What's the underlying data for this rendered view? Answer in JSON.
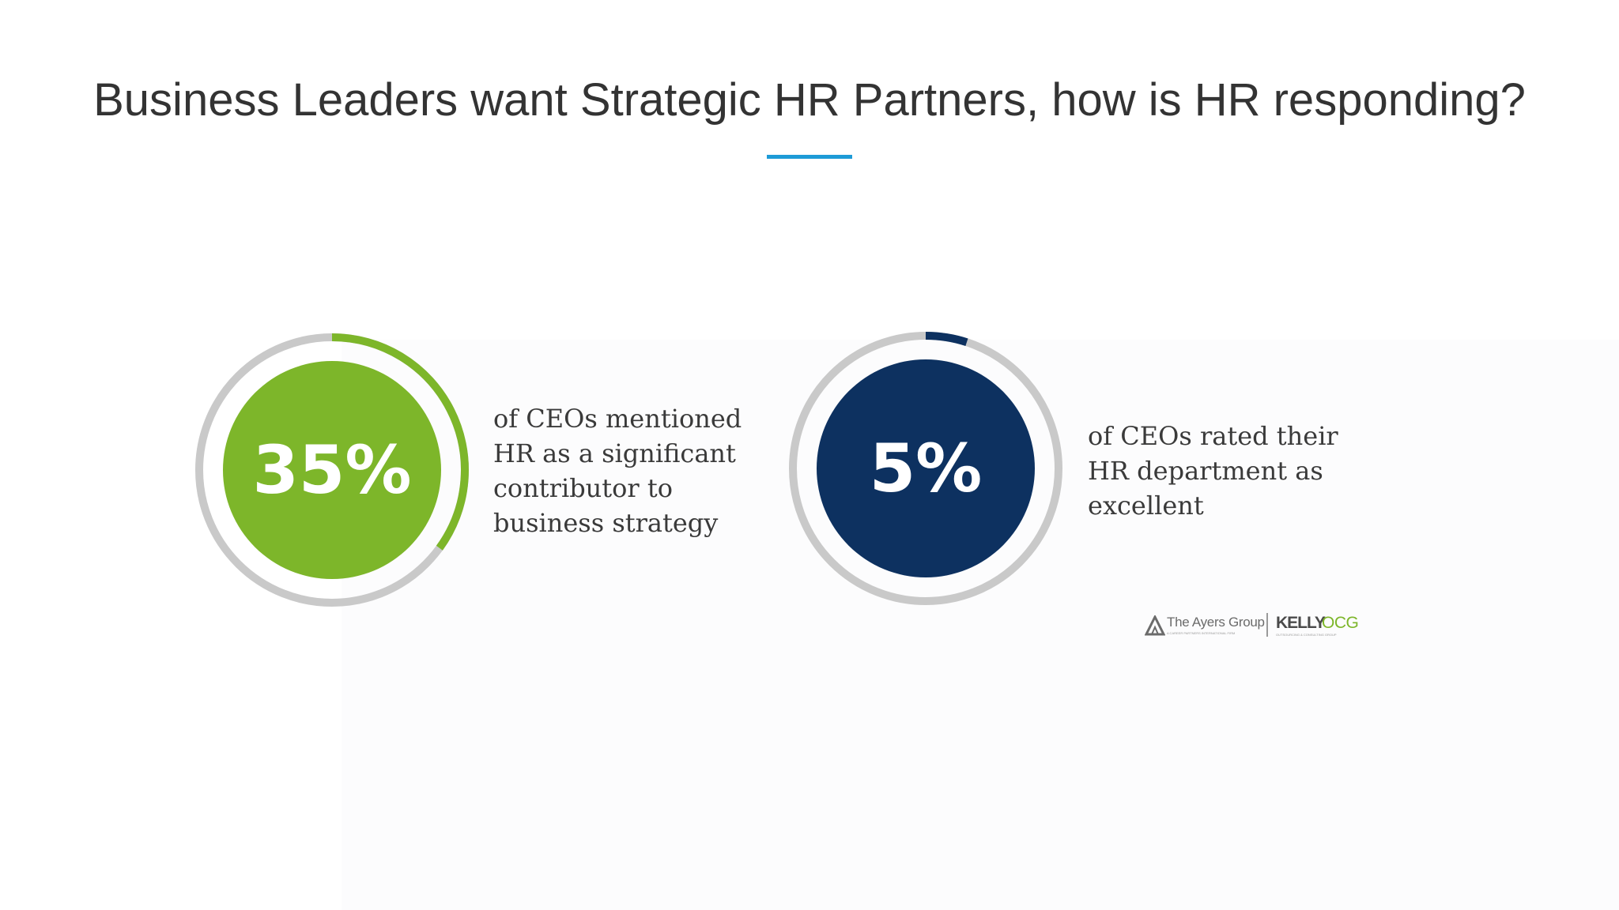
{
  "title": "Business Leaders want Strategic HR Partners, how is HR responding?",
  "colors": {
    "accent_rule": "#1E9BD7",
    "green": "#7DB62A",
    "navy": "#0D3160",
    "track": "#c9c9c9"
  },
  "chart_data": [
    {
      "type": "pie",
      "label": "35%",
      "value": 35,
      "caption": "of CEOs mentioned\nHR as a significant\ncontributor to\nbusiness strategy",
      "color": "#7DB62A"
    },
    {
      "type": "pie",
      "label": "5%",
      "value": 5,
      "caption": "of CEOs rated their\nHR department as\nexcellent",
      "color": "#0D3160"
    }
  ],
  "logos": {
    "ayers_name": "The Ayers Group",
    "ayers_sub": "A CAREER PARTNERS INTERNATIONAL FIRM",
    "kelly_word": "KELLY",
    "ocg_word": "OCG",
    "kelly_sub": "OUTSOURCING & CONSULTING GROUP"
  }
}
